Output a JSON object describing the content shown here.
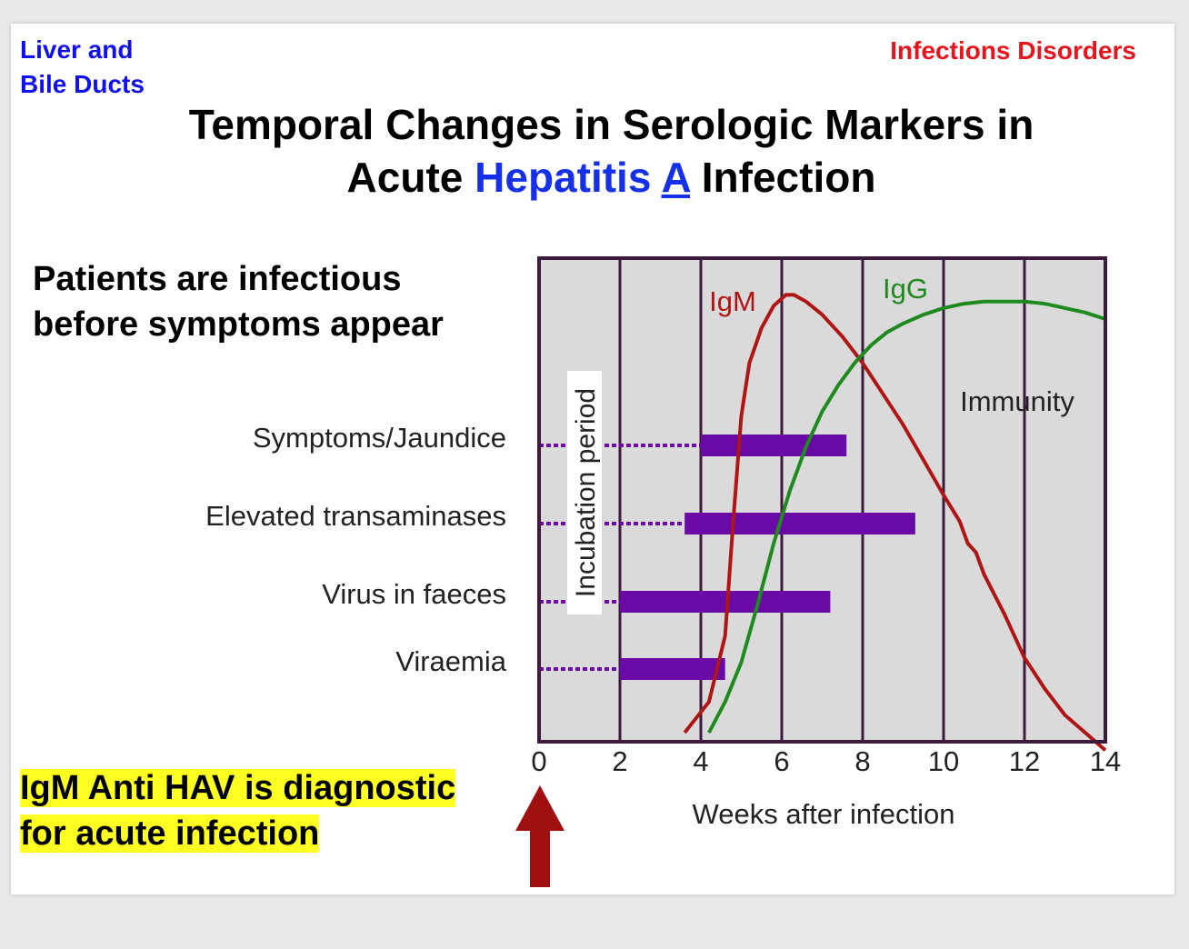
{
  "header": {
    "left_line1": "Liver and",
    "left_line2": "Bile Ducts",
    "right": "Infections Disorders"
  },
  "title": {
    "line1": "Temporal Changes in Serologic Markers in",
    "line2_pre": "Acute ",
    "line2_hl": "Hepatitis",
    "line2_sp": " ",
    "line2_hl2": "A",
    "line2_post": " Infection"
  },
  "note": {
    "line1": "Patients are infectious",
    "line2": "before symptoms appear"
  },
  "callout": {
    "line1": " IgM Anti HAV is diagnostic",
    "line2": "for acute infection"
  },
  "colors": {
    "igm": "#b01515",
    "igg": "#1e8a1e",
    "bars": "#6a0aa6",
    "frame": "#3d1a3d",
    "plot_bg": "#dadada",
    "arrow": "#a01010"
  },
  "icons": {
    "arrow": "up-arrow-icon"
  },
  "chart_data": {
    "type": "line",
    "xlabel": "Weeks after infection",
    "ylabel": "",
    "x_ticks": [
      0,
      2,
      4,
      6,
      8,
      10,
      12,
      14
    ],
    "xlim": [
      0,
      14
    ],
    "ylim": [
      0,
      100
    ],
    "grid": true,
    "incubation_label": "Incubation period",
    "annotation": "Immunity",
    "series": [
      {
        "name": "IgM",
        "x": [
          3.6,
          4.2,
          4.6,
          4.8,
          5.0,
          5.2,
          5.5,
          5.8,
          6.1,
          6.3,
          6.6,
          7.0,
          7.5,
          8.0,
          8.5,
          9.0,
          9.5,
          10.0,
          10.4,
          10.6,
          10.8,
          11.0,
          11.5,
          12.0,
          12.5,
          13.0,
          13.5,
          14.0
        ],
        "y": [
          0,
          7,
          22,
          48,
          72,
          84,
          92,
          97,
          99.5,
          99.5,
          98,
          95,
          90,
          84,
          77,
          70,
          62,
          54,
          48,
          43,
          41,
          36,
          27,
          17,
          10,
          4,
          0,
          -4
        ]
      },
      {
        "name": "IgG",
        "x": [
          4.2,
          4.6,
          5.0,
          5.4,
          5.8,
          6.2,
          6.6,
          7.0,
          7.4,
          7.8,
          8.2,
          8.6,
          9.0,
          9.5,
          10.0,
          10.5,
          11.0,
          11.5,
          12.0,
          12.5,
          13.0,
          13.5,
          14.0
        ],
        "y": [
          0,
          7,
          16,
          29,
          43,
          55,
          65,
          73,
          79,
          84,
          88,
          91,
          93,
          95,
          96.5,
          97.5,
          98,
          98,
          98,
          97.5,
          96.5,
          95.5,
          94
        ]
      }
    ],
    "bars": [
      {
        "label": "Symptoms/Jaundice",
        "start": 4.0,
        "end": 7.6,
        "dotted_from": 0
      },
      {
        "label": "Elevated transaminases",
        "start": 3.6,
        "end": 9.3,
        "dotted_from": 0
      },
      {
        "label": "Virus in faeces",
        "start": 2.0,
        "end": 7.2,
        "dotted_from": 0
      },
      {
        "label": "Viraemia",
        "start": 2.0,
        "end": 4.6,
        "dotted_from": 0
      }
    ]
  }
}
